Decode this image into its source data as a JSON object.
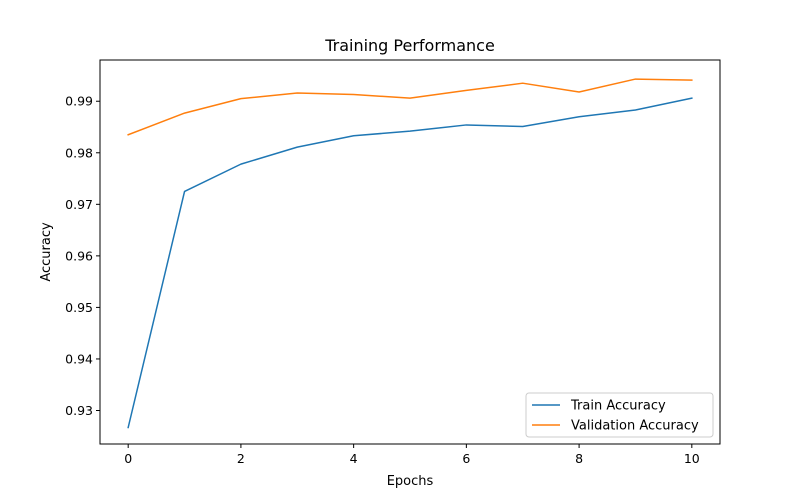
{
  "chart_data": {
    "type": "line",
    "title": "Training Performance",
    "xlabel": "Epochs",
    "ylabel": "Accuracy",
    "xlim": [
      -0.5,
      10.5
    ],
    "ylim": [
      0.9235,
      0.998
    ],
    "x": [
      0,
      1,
      2,
      3,
      4,
      5,
      6,
      7,
      8,
      9,
      10
    ],
    "xticks": [
      0,
      2,
      4,
      6,
      8,
      10
    ],
    "xtick_labels": [
      "0",
      "2",
      "4",
      "6",
      "8",
      "10"
    ],
    "yticks": [
      0.93,
      0.94,
      0.95,
      0.96,
      0.97,
      0.98,
      0.99
    ],
    "ytick_labels": [
      "0.93",
      "0.94",
      "0.95",
      "0.96",
      "0.97",
      "0.98",
      "0.99"
    ],
    "grid": false,
    "legend_position": "lower-right",
    "series": [
      {
        "name": "Train Accuracy",
        "color": "#1f77b4",
        "values": [
          0.9267,
          0.9725,
          0.9778,
          0.9811,
          0.9833,
          0.9842,
          0.9854,
          0.9851,
          0.987,
          0.9883,
          0.9906
        ]
      },
      {
        "name": "Validation Accuracy",
        "color": "#ff7f0e",
        "values": [
          0.9835,
          0.9877,
          0.9905,
          0.9916,
          0.9913,
          0.9906,
          0.9921,
          0.9935,
          0.9918,
          0.9943,
          0.9941
        ]
      }
    ]
  }
}
